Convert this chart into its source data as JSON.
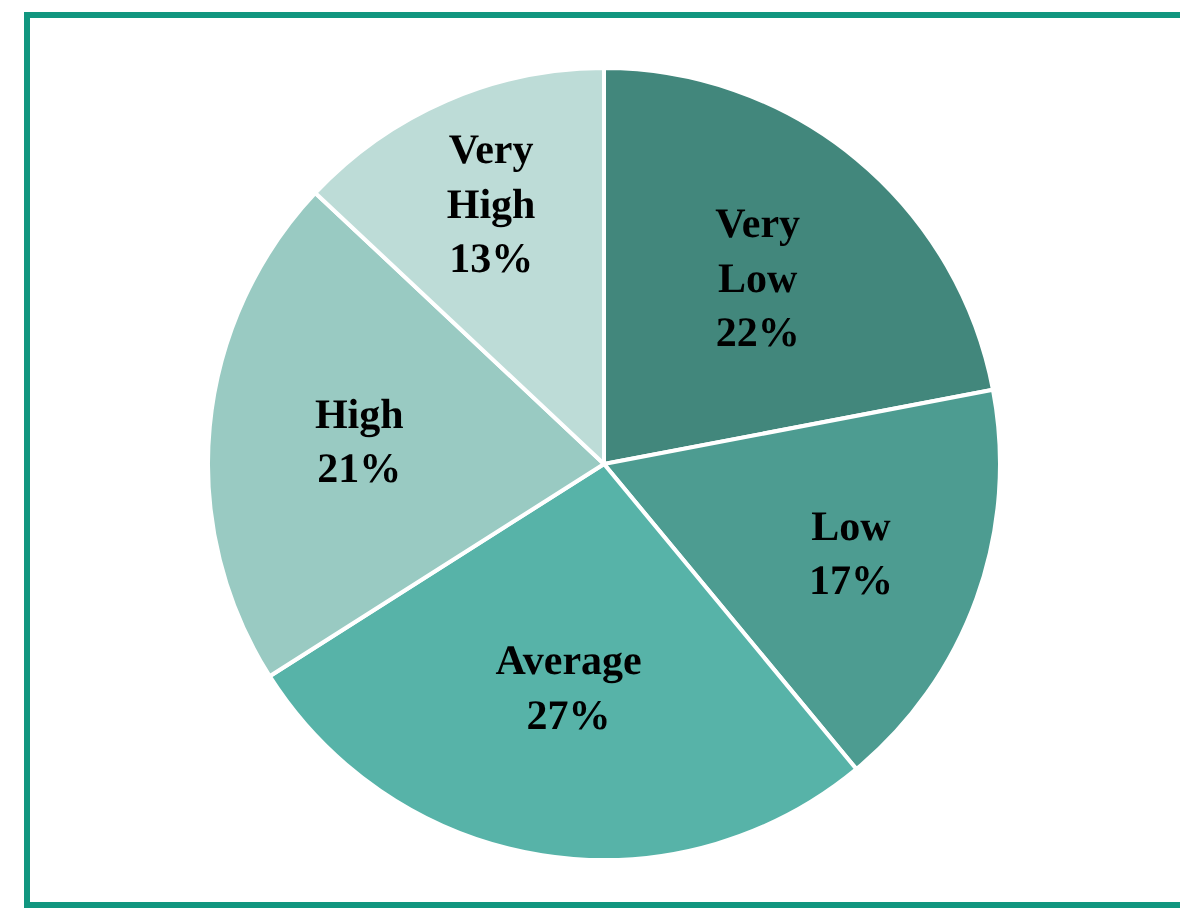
{
  "chart_data": {
    "type": "pie",
    "categories": [
      "Very Low",
      "Low",
      "Average",
      "High",
      "Very High"
    ],
    "values": [
      22,
      17,
      27,
      21,
      13
    ],
    "colors": [
      "#42877c",
      "#4d9c91",
      "#57b3a8",
      "#99cac2",
      "#bddcd7"
    ],
    "value_labels": [
      "22%",
      "17%",
      "27%",
      "21%",
      "13%"
    ]
  }
}
